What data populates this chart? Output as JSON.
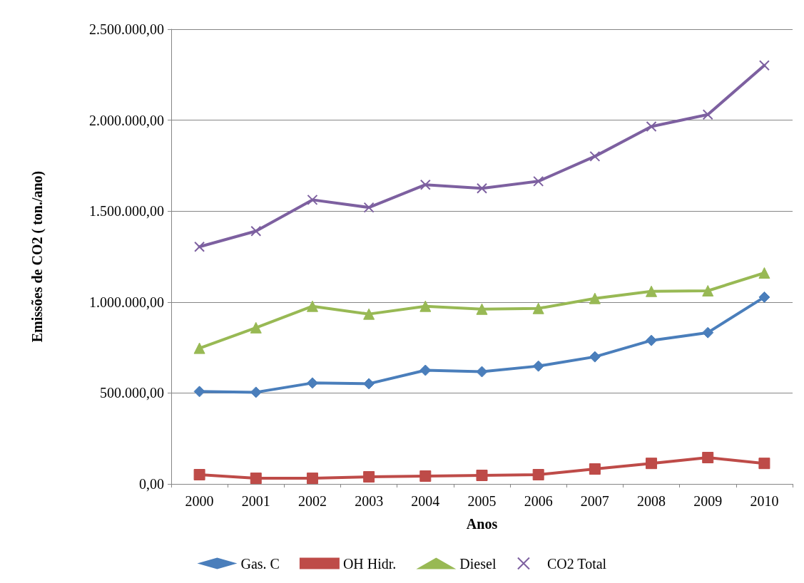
{
  "chart_data": {
    "type": "line",
    "xlabel": "Anos",
    "ylabel": "Emissões de CO2 ( ton./ano)",
    "categories": [
      "2000",
      "2001",
      "2002",
      "2003",
      "2004",
      "2005",
      "2006",
      "2007",
      "2008",
      "2009",
      "2010"
    ],
    "series": [
      {
        "name": "Gas. C",
        "color": "#4a7ebb",
        "marker": "diamond",
        "values": [
          508000,
          504000,
          555000,
          551000,
          625000,
          617000,
          648000,
          699000,
          789000,
          832000,
          1027000
        ]
      },
      {
        "name": "OH Hidr.",
        "color": "#be4b48",
        "marker": "square",
        "values": [
          51000,
          31000,
          31000,
          39000,
          43000,
          47000,
          51000,
          82000,
          113000,
          145000,
          113000
        ]
      },
      {
        "name": "Diesel",
        "color": "#98b954",
        "marker": "triangle",
        "values": [
          746000,
          859000,
          977000,
          934000,
          977000,
          961000,
          965000,
          1020000,
          1059000,
          1062000,
          1160000
        ]
      },
      {
        "name": "CO2 Total",
        "color": "#7d60a0",
        "marker": "cross",
        "values": [
          1304000,
          1390000,
          1562000,
          1520000,
          1645000,
          1625000,
          1664000,
          1801000,
          1965000,
          2031000,
          2301000
        ]
      }
    ],
    "ylim": [
      0,
      2500000
    ],
    "yticks": [
      {
        "value": 0,
        "label": "0,00"
      },
      {
        "value": 500000,
        "label": "500.000,00"
      },
      {
        "value": 1000000,
        "label": "1.000.000,00"
      },
      {
        "value": 1500000,
        "label": "1.500.000,00"
      },
      {
        "value": 2000000,
        "label": "2.000.000,00"
      },
      {
        "value": 2500000,
        "label": "2.500.000,00"
      }
    ],
    "grid": "y",
    "legend": "bottom",
    "line_style": "solid"
  }
}
